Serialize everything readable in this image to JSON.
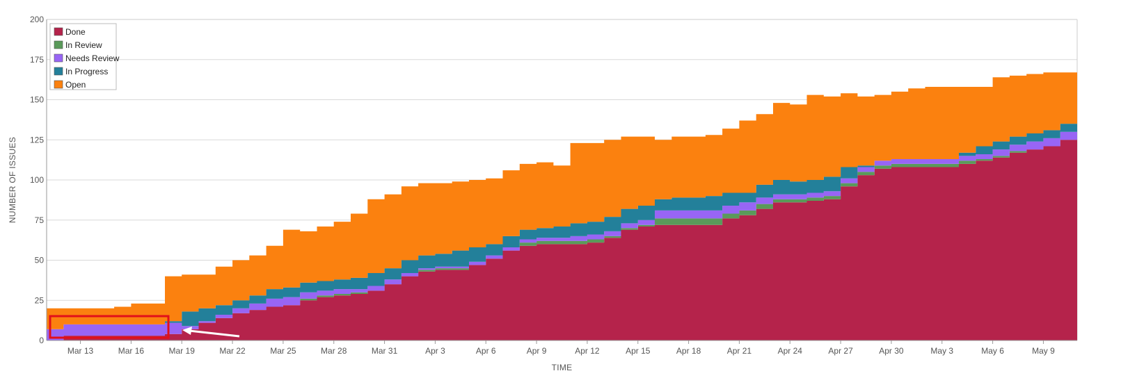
{
  "chart_data": {
    "type": "area",
    "stacked": true,
    "xlabel": "TIME",
    "ylabel": "NUMBER OF ISSUES",
    "ylim": [
      0,
      200
    ],
    "yticks": [
      0,
      25,
      50,
      75,
      100,
      125,
      150,
      175,
      200
    ],
    "xlim": [
      "2024-03-11",
      "2024-05-11"
    ],
    "xticks": [
      {
        "date": "2024-03-13",
        "label": "Mar 13"
      },
      {
        "date": "2024-03-16",
        "label": "Mar 16"
      },
      {
        "date": "2024-03-19",
        "label": "Mar 19"
      },
      {
        "date": "2024-03-22",
        "label": "Mar 22"
      },
      {
        "date": "2024-03-25",
        "label": "Mar 25"
      },
      {
        "date": "2024-03-28",
        "label": "Mar 28"
      },
      {
        "date": "2024-03-31",
        "label": "Mar 31"
      },
      {
        "date": "2024-04-03",
        "label": "Apr 3"
      },
      {
        "date": "2024-04-06",
        "label": "Apr 6"
      },
      {
        "date": "2024-04-09",
        "label": "Apr 9"
      },
      {
        "date": "2024-04-12",
        "label": "Apr 12"
      },
      {
        "date": "2024-04-15",
        "label": "Apr 15"
      },
      {
        "date": "2024-04-18",
        "label": "Apr 18"
      },
      {
        "date": "2024-04-21",
        "label": "Apr 21"
      },
      {
        "date": "2024-04-24",
        "label": "Apr 24"
      },
      {
        "date": "2024-04-27",
        "label": "Apr 27"
      },
      {
        "date": "2024-04-30",
        "label": "Apr 30"
      },
      {
        "date": "2024-05-03",
        "label": "May 3"
      },
      {
        "date": "2024-05-06",
        "label": "May 6"
      },
      {
        "date": "2024-05-09",
        "label": "May 9"
      }
    ],
    "grid": true,
    "legend_position": "top-left",
    "legend": [
      {
        "name": "Done",
        "color": "#b5234b"
      },
      {
        "name": "In Review",
        "color": "#5a9a5a"
      },
      {
        "name": "Needs Review",
        "color": "#9865f5"
      },
      {
        "name": "In Progress",
        "color": "#23809a"
      },
      {
        "name": "Open",
        "color": "#fb810f"
      }
    ],
    "x": [
      "2024-03-11",
      "2024-03-12",
      "2024-03-13",
      "2024-03-14",
      "2024-03-15",
      "2024-03-16",
      "2024-03-17",
      "2024-03-18",
      "2024-03-19",
      "2024-03-20",
      "2024-03-21",
      "2024-03-22",
      "2024-03-23",
      "2024-03-24",
      "2024-03-25",
      "2024-03-26",
      "2024-03-27",
      "2024-03-28",
      "2024-03-29",
      "2024-03-30",
      "2024-03-31",
      "2024-04-01",
      "2024-04-02",
      "2024-04-03",
      "2024-04-04",
      "2024-04-05",
      "2024-04-06",
      "2024-04-07",
      "2024-04-08",
      "2024-04-09",
      "2024-04-10",
      "2024-04-11",
      "2024-04-12",
      "2024-04-13",
      "2024-04-14",
      "2024-04-15",
      "2024-04-16",
      "2024-04-17",
      "2024-04-18",
      "2024-04-19",
      "2024-04-20",
      "2024-04-21",
      "2024-04-22",
      "2024-04-23",
      "2024-04-24",
      "2024-04-25",
      "2024-04-26",
      "2024-04-27",
      "2024-04-28",
      "2024-04-29",
      "2024-04-30",
      "2024-05-01",
      "2024-05-02",
      "2024-05-03",
      "2024-05-04",
      "2024-05-05",
      "2024-05-06",
      "2024-05-07",
      "2024-05-08",
      "2024-05-09",
      "2024-05-10",
      "2024-05-11"
    ],
    "series": [
      {
        "name": "Done",
        "values": [
          0,
          3,
          3,
          3,
          3,
          3,
          3,
          4,
          7,
          11,
          14,
          17,
          19,
          21,
          22,
          25,
          27,
          28,
          29,
          31,
          35,
          40,
          43,
          44,
          44,
          47,
          51,
          56,
          59,
          60,
          60,
          60,
          61,
          64,
          69,
          71,
          72,
          72,
          72,
          72,
          76,
          78,
          82,
          86,
          86,
          87,
          88,
          96,
          103,
          107,
          108,
          108,
          108,
          108,
          110,
          112,
          114,
          117,
          119,
          121,
          125,
          135
        ]
      },
      {
        "name": "In Review",
        "values": [
          0,
          0,
          0,
          0,
          0,
          0,
          0,
          0,
          0,
          0,
          0,
          0,
          0,
          0,
          0,
          1,
          1,
          1,
          1,
          0,
          0,
          0,
          1,
          1,
          1,
          0,
          0,
          0,
          2,
          2,
          2,
          2,
          2,
          1,
          1,
          1,
          4,
          4,
          4,
          4,
          3,
          3,
          3,
          2,
          2,
          2,
          2,
          2,
          2,
          2,
          2,
          2,
          2,
          2,
          2,
          1,
          1,
          1,
          0,
          0,
          0,
          0
        ]
      },
      {
        "name": "Needs Review",
        "values": [
          7,
          7,
          7,
          7,
          7,
          7,
          7,
          7,
          2,
          1,
          2,
          3,
          4,
          5,
          5,
          4,
          3,
          3,
          2,
          3,
          3,
          2,
          1,
          1,
          1,
          2,
          2,
          2,
          2,
          2,
          2,
          3,
          3,
          3,
          3,
          3,
          5,
          5,
          5,
          5,
          5,
          5,
          4,
          3,
          3,
          3,
          3,
          3,
          3,
          3,
          3,
          3,
          3,
          3,
          3,
          3,
          4,
          4,
          5,
          5,
          5,
          5
        ]
      },
      {
        "name": "In Progress",
        "values": [
          0,
          0,
          0,
          0,
          0,
          0,
          0,
          1,
          9,
          8,
          6,
          5,
          5,
          6,
          6,
          6,
          6,
          6,
          7,
          8,
          7,
          8,
          8,
          8,
          10,
          9,
          7,
          7,
          6,
          6,
          7,
          8,
          8,
          9,
          9,
          9,
          7,
          8,
          8,
          9,
          8,
          6,
          8,
          9,
          8,
          8,
          9,
          7,
          1,
          0,
          0,
          0,
          0,
          0,
          2,
          5,
          5,
          5,
          5,
          5,
          5,
          2
        ]
      },
      {
        "name": "Open",
        "values": [
          13,
          10,
          10,
          10,
          11,
          13,
          13,
          28,
          23,
          21,
          24,
          25,
          25,
          27,
          36,
          32,
          34,
          36,
          40,
          46,
          46,
          46,
          45,
          44,
          43,
          42,
          41,
          41,
          41,
          41,
          38,
          50,
          49,
          48,
          45,
          43,
          37,
          38,
          38,
          38,
          40,
          45,
          44,
          48,
          48,
          53,
          50,
          46,
          43,
          41,
          42,
          44,
          45,
          45,
          41,
          37,
          40,
          38,
          37,
          36,
          32,
          44
        ]
      }
    ]
  }
}
